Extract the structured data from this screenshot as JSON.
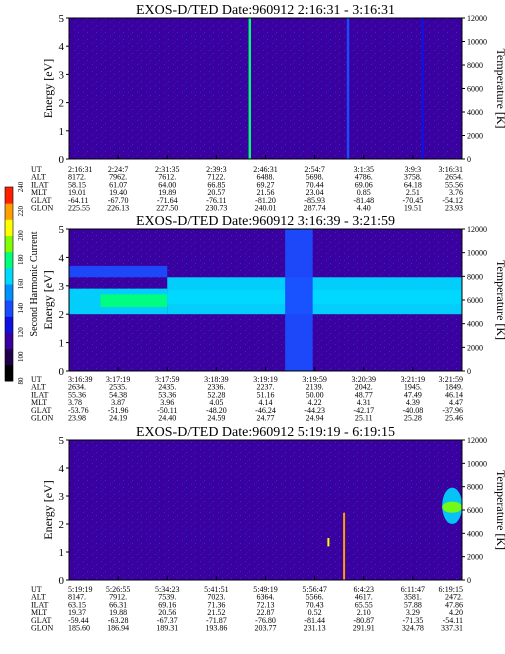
{
  "colors": {
    "background_level": "#2020c8",
    "colormap": [
      "#000000",
      "#20004a",
      "#3a00a0",
      "#1010e0",
      "#1a4cff",
      "#0090ff",
      "#00d8ff",
      "#00ff7a",
      "#80ff00",
      "#ffff00",
      "#ffa000",
      "#ff2000"
    ],
    "line_green": "#00c040"
  },
  "colorbar": {
    "label": "Second Harmonic Current",
    "ticks": [
      "80",
      "100",
      "120",
      "140",
      "160",
      "180",
      "200",
      "220",
      "240"
    ],
    "min": 80,
    "max": 240
  },
  "panels": [
    {
      "title": "EXOS-D/TED   Date:960912  2:16:31 - 3:16:31",
      "ylabel": "Energy [eV]",
      "y2label": "Temperature [K]",
      "yticks": [
        "0",
        "1",
        "2",
        "3",
        "4",
        "5"
      ],
      "y2ticks": [
        "0",
        "2000",
        "4000",
        "6000",
        "8000",
        "10000",
        "12000"
      ],
      "rows": [
        {
          "name": "UT",
          "values": [
            "2:16:31",
            "2:24:7",
            "2:31:35",
            "2:39:3",
            "2:46:31",
            "2:54:7",
            "3:1:35",
            "3:9:3",
            "3:16:31"
          ]
        },
        {
          "name": "ALT",
          "values": [
            "8172.",
            "7962.",
            "7612.",
            "7122.",
            "6488.",
            "5698.",
            "4786.",
            "3758.",
            "2654."
          ]
        },
        {
          "name": "ILAT",
          "values": [
            "58.15",
            "61.07",
            "64.00",
            "66.85",
            "69.27",
            "70.44",
            "69.06",
            "64.18",
            "55.56"
          ]
        },
        {
          "name": "MLT",
          "values": [
            "19.01",
            "19.40",
            "19.89",
            "20.57",
            "21.56",
            "23.04",
            "0.85",
            "2.51",
            "3.76"
          ]
        },
        {
          "name": "GLAT",
          "values": [
            "-64.11",
            "-67.70",
            "-71.64",
            "-76.11",
            "-81.20",
            "-85.93",
            "-81.48",
            "-70.45",
            "-54.12"
          ]
        },
        {
          "name": "GLON",
          "values": [
            "225.55",
            "226.13",
            "227.50",
            "230.73",
            "240.01",
            "287.74",
            "4.40",
            "19.51",
            "23.93"
          ]
        }
      ]
    },
    {
      "title": "EXOS-D/TED   Date:960912  3:16:39 - 3:21:59",
      "ylabel": "Energy [eV]",
      "y2label": "Temperature [K]",
      "yticks": [
        "0",
        "1",
        "2",
        "3",
        "4",
        "5"
      ],
      "y2ticks": [
        "0",
        "2000",
        "4000",
        "6000",
        "8000",
        "10000",
        "12000"
      ],
      "rows": [
        {
          "name": "UT",
          "values": [
            "3:16:39",
            "3:17:19",
            "3:17:59",
            "3:18:39",
            "3:19:19",
            "3:19:59",
            "3:20:39",
            "3:21:19",
            "3:21:59"
          ]
        },
        {
          "name": "ALT",
          "values": [
            "2634.",
            "2535.",
            "2435.",
            "2336.",
            "2237.",
            "2139.",
            "2042.",
            "1945.",
            "1849."
          ]
        },
        {
          "name": "ILAT",
          "values": [
            "55.36",
            "54.38",
            "53.36",
            "52.28",
            "51.16",
            "50.00",
            "48.77",
            "47.49",
            "46.14"
          ]
        },
        {
          "name": "MLT",
          "values": [
            "3.78",
            "3.87",
            "3.96",
            "4.05",
            "4.14",
            "4.22",
            "4.31",
            "4.39",
            "4.47"
          ]
        },
        {
          "name": "GLAT",
          "values": [
            "-53.76",
            "-51.96",
            "-50.11",
            "-48.20",
            "-46.24",
            "-44.23",
            "-42.17",
            "-40.08",
            "-37.96"
          ]
        },
        {
          "name": "GLON",
          "values": [
            "23.98",
            "24.19",
            "24.40",
            "24.59",
            "24.77",
            "24.94",
            "25.11",
            "25.28",
            "25.46"
          ]
        }
      ]
    },
    {
      "title": "EXOS-D/TED   Date:960912  5:19:19 - 6:19:15",
      "ylabel": "Energy [eV]",
      "y2label": "Temperature [K]",
      "yticks": [
        "0",
        "1",
        "2",
        "3",
        "4",
        "5"
      ],
      "y2ticks": [
        "0",
        "2000",
        "4000",
        "6000",
        "8000",
        "10000",
        "12000"
      ],
      "rows": [
        {
          "name": "UT",
          "values": [
            "5:19:19",
            "5:26:55",
            "5:34:23",
            "5:41:51",
            "5:49:19",
            "5:56:47",
            "6:4:23",
            "6:11:47",
            "6:19:15"
          ]
        },
        {
          "name": "ALT",
          "values": [
            "8147.",
            "7912.",
            "7539.",
            "7023.",
            "6364.",
            "5566.",
            "4617.",
            "3581.",
            "2472."
          ]
        },
        {
          "name": "ILAT",
          "values": [
            "63.15",
            "66.31",
            "69.16",
            "71.36",
            "72.13",
            "70.43",
            "65.55",
            "57.88",
            "47.86"
          ]
        },
        {
          "name": "MLT",
          "values": [
            "19.37",
            "19.88",
            "20.56",
            "21.52",
            "22.87",
            "0.52",
            "2.10",
            "3.29",
            "4.20"
          ]
        },
        {
          "name": "GLAT",
          "values": [
            "-59.44",
            "-63.28",
            "-67.37",
            "-71.87",
            "-76.80",
            "-81.44",
            "-80.87",
            "-71.35",
            "-54.11"
          ]
        },
        {
          "name": "GLON",
          "values": [
            "185.60",
            "186.94",
            "189.31",
            "193.86",
            "203.77",
            "231.13",
            "291.91",
            "324.78",
            "337.31"
          ]
        }
      ]
    }
  ],
  "chart_data": [
    {
      "type": "heatmap",
      "title": "EXOS-D/TED   Date:960912  2:16:31 - 3:16:31",
      "ylabel": "Energy [eV]",
      "y2label": "Temperature [K]",
      "ylim": [
        0,
        5
      ],
      "y2lim": [
        0,
        12000
      ],
      "x_categories": [
        "2:16:31",
        "2:24:7",
        "2:31:35",
        "2:39:3",
        "2:46:31",
        "2:54:7",
        "3:1:35",
        "3:9:3",
        "3:16:31"
      ],
      "background_value": 110,
      "features": [
        {
          "kind": "vertical_streak",
          "x_frac": 0.46,
          "value": 180
        },
        {
          "kind": "vertical_streak",
          "x_frac": 0.71,
          "value": 135
        },
        {
          "kind": "vertical_streak",
          "x_frac": 0.9,
          "value": 130
        }
      ]
    },
    {
      "type": "heatmap",
      "title": "EXOS-D/TED   Date:960912  3:16:39 - 3:21:59",
      "ylabel": "Energy [eV]",
      "y2label": "Temperature [K]",
      "ylim": [
        0,
        5
      ],
      "y2lim": [
        0,
        12000
      ],
      "x_categories": [
        "3:16:39",
        "3:17:19",
        "3:17:59",
        "3:18:39",
        "3:19:19",
        "3:19:59",
        "3:20:39",
        "3:21:19",
        "3:21:59"
      ],
      "background_value": 115,
      "bands": [
        {
          "x_range": [
            0.0,
            0.25
          ],
          "y_range": [
            2.0,
            2.9
          ],
          "value": 160
        },
        {
          "x_range": [
            0.08,
            0.25
          ],
          "y_range": [
            2.25,
            2.7
          ],
          "value": 178
        },
        {
          "x_range": [
            0.25,
            1.0
          ],
          "y_range": [
            2.0,
            3.3
          ],
          "value": 160
        },
        {
          "x_range": [
            0.25,
            1.0
          ],
          "y_range": [
            2.35,
            2.85
          ],
          "value": 172
        },
        {
          "x_range": [
            0.55,
            0.62
          ],
          "y_range": [
            0.0,
            5.0
          ],
          "value": 140
        },
        {
          "x_range": [
            0.0,
            0.25
          ],
          "y_range": [
            3.3,
            3.7
          ],
          "value": 135
        }
      ]
    },
    {
      "type": "heatmap",
      "title": "EXOS-D/TED   Date:960912  5:19:19 - 6:19:15",
      "ylabel": "Energy [eV]",
      "y2label": "Temperature [K]",
      "ylim": [
        0,
        5
      ],
      "y2lim": [
        0,
        12000
      ],
      "x_categories": [
        "5:19:19",
        "5:26:55",
        "5:34:23",
        "5:41:51",
        "5:49:19",
        "5:56:47",
        "6:4:23",
        "6:11:47",
        "6:19:15"
      ],
      "background_value": 110,
      "features": [
        {
          "kind": "short_streak",
          "x_frac": 0.7,
          "y_range": [
            0.0,
            2.4
          ],
          "value": 220
        },
        {
          "kind": "short_streak",
          "x_frac": 0.66,
          "y_range": [
            1.2,
            1.5
          ],
          "value": 200
        },
        {
          "kind": "blob",
          "x_frac": 0.975,
          "y_range": [
            2.0,
            3.3
          ],
          "value": 170
        },
        {
          "kind": "blob",
          "x_frac": 0.975,
          "y_range": [
            2.4,
            2.8
          ],
          "value": 190
        }
      ]
    }
  ]
}
